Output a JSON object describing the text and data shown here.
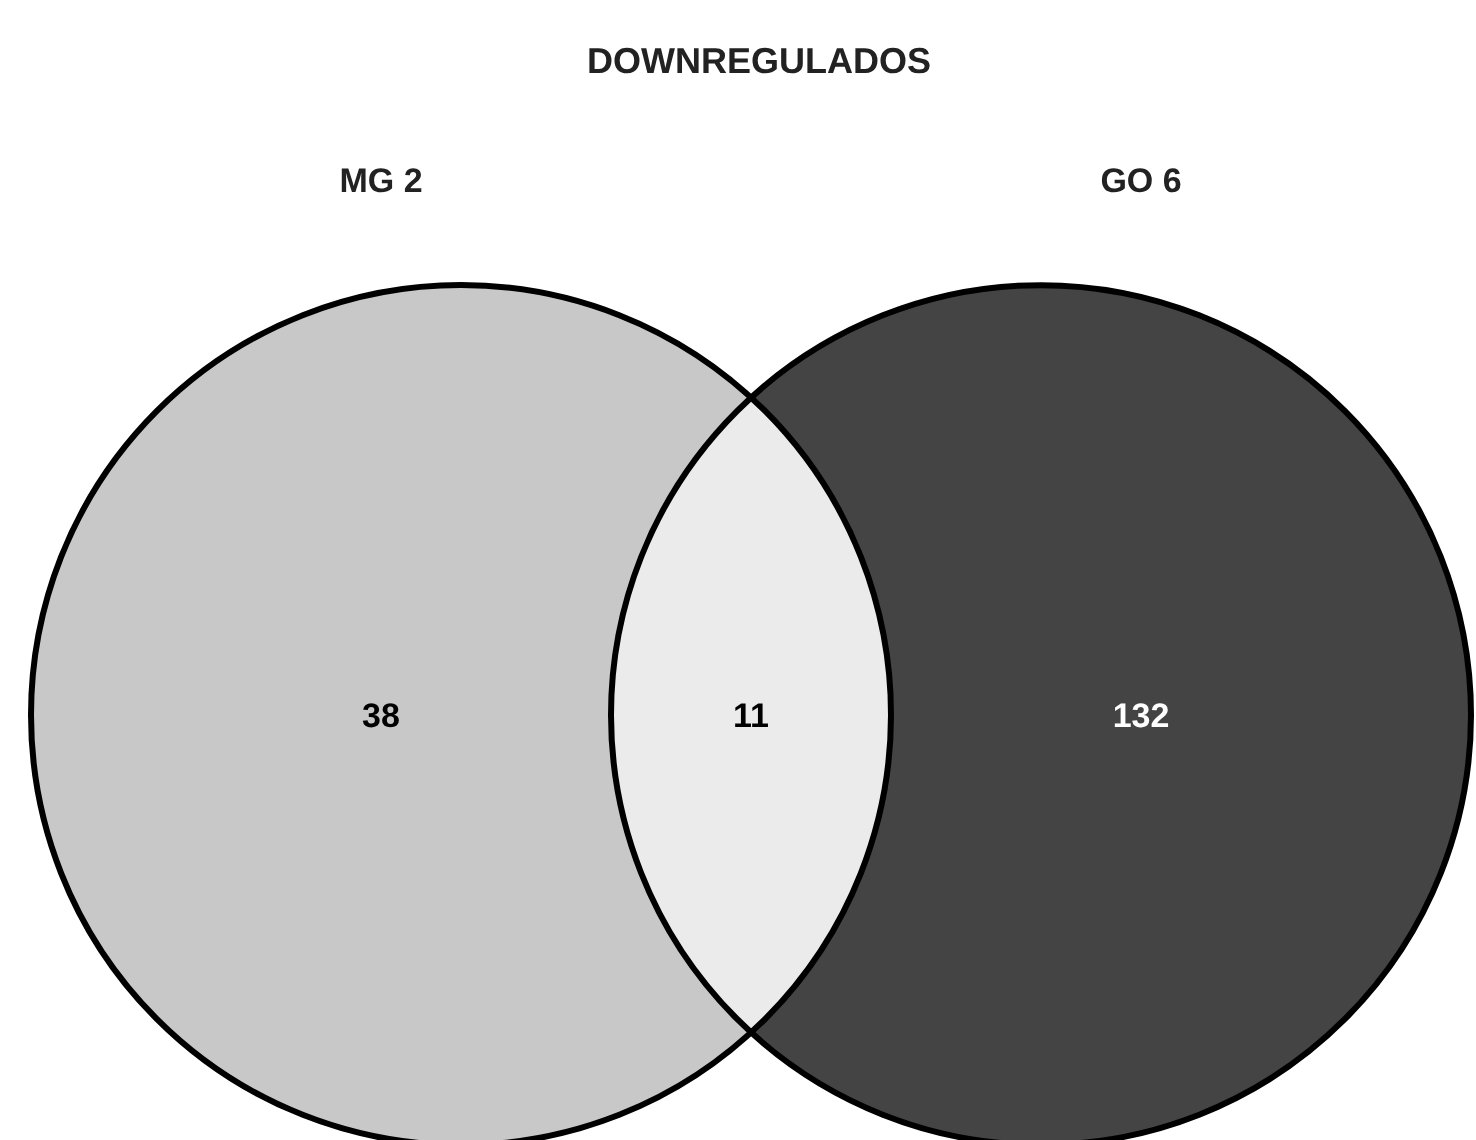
{
  "chart_data": {
    "type": "other",
    "title": "DOWNREGULADOS",
    "categories": [
      "MG 2",
      null,
      "GO 6"
    ],
    "values": [
      38,
      11,
      132
    ],
    "colors": [
      "#c8c8c8",
      "#ebebeb",
      "#444444"
    ],
    "data_labels": true
  }
}
